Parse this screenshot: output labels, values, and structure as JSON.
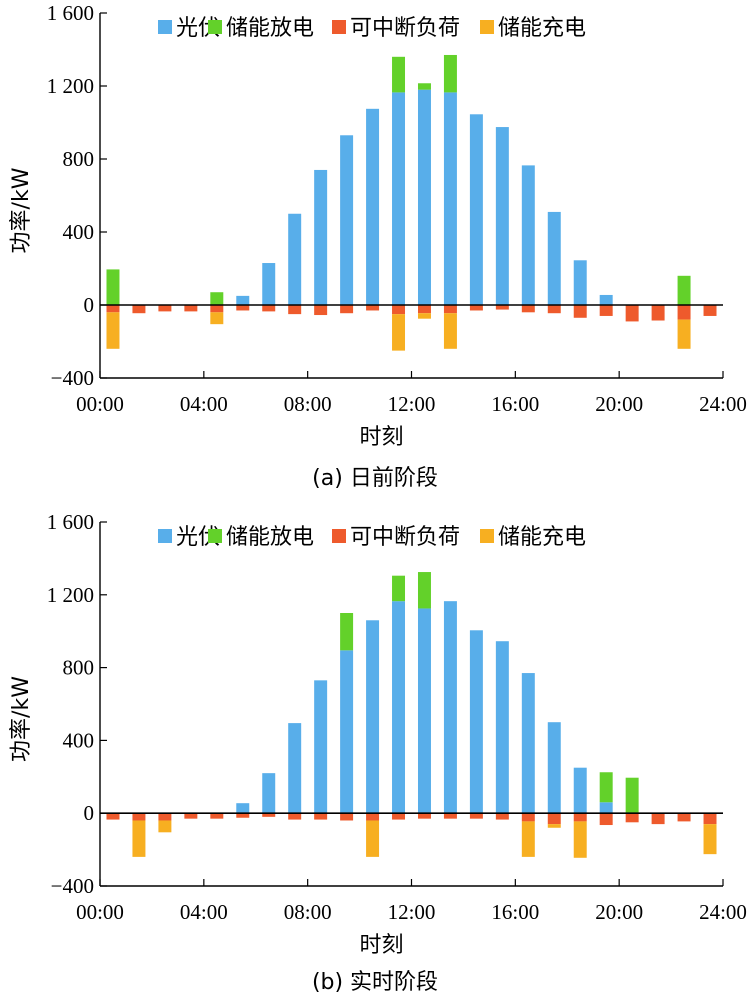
{
  "legend": {
    "pv": "光伏",
    "discharge": "储能放电",
    "curtail": "可中断负荷",
    "charge": "储能充电"
  },
  "colors": {
    "pv": "#58AEEA",
    "discharge": "#63D12A",
    "curtail": "#EE5A2C",
    "charge": "#F7AF21"
  },
  "chart_data": [
    {
      "type": "bar",
      "caption": "(a) 日前阶段",
      "xlabel": "时刻",
      "ylabel": "功率/kW",
      "ylim": [
        -400,
        1600
      ],
      "yticks": [
        "−400",
        "0",
        "400",
        "800",
        "1 200",
        "1 600"
      ],
      "ytick_values": [
        -400,
        0,
        400,
        800,
        1200,
        1600
      ],
      "xticks": [
        "00:00",
        "04:00",
        "08:00",
        "12:00",
        "16:00",
        "20:00",
        "24:00"
      ],
      "xlim": [
        0,
        24
      ],
      "legend_position": "top",
      "categories": [
        "00:00",
        "01:00",
        "02:00",
        "03:00",
        "04:00",
        "05:00",
        "06:00",
        "07:00",
        "08:00",
        "09:00",
        "10:00",
        "11:00",
        "12:00",
        "13:00",
        "14:00",
        "15:00",
        "16:00",
        "17:00",
        "18:00",
        "19:00",
        "20:00",
        "21:00",
        "22:00",
        "23:00"
      ],
      "series": [
        {
          "name": "光伏",
          "key": "pv",
          "values": [
            0,
            0,
            0,
            0,
            0,
            50,
            230,
            500,
            740,
            930,
            1075,
            1165,
            1180,
            1165,
            1045,
            975,
            765,
            510,
            245,
            55,
            0,
            0,
            0,
            0
          ]
        },
        {
          "name": "储能放电",
          "key": "discharge",
          "values": [
            195,
            0,
            0,
            0,
            70,
            0,
            0,
            0,
            0,
            0,
            0,
            195,
            35,
            205,
            0,
            0,
            0,
            0,
            0,
            0,
            0,
            0,
            160,
            0
          ]
        },
        {
          "name": "可中断负荷",
          "key": "curtail",
          "values": [
            -40,
            -45,
            -35,
            -35,
            -40,
            -30,
            -35,
            -50,
            -55,
            -45,
            -30,
            -50,
            -45,
            -45,
            -30,
            -25,
            -40,
            -45,
            -70,
            -60,
            -90,
            -85,
            -80,
            -60
          ]
        },
        {
          "name": "储能充电",
          "key": "charge",
          "values": [
            -200,
            0,
            0,
            0,
            -65,
            0,
            0,
            0,
            0,
            0,
            0,
            -200,
            -30,
            -195,
            0,
            0,
            0,
            0,
            0,
            0,
            0,
            0,
            -160,
            0
          ]
        }
      ]
    },
    {
      "type": "bar",
      "caption": "(b) 实时阶段",
      "xlabel": "时刻",
      "ylabel": "功率/kW",
      "ylim": [
        -400,
        1600
      ],
      "yticks": [
        "−400",
        "0",
        "400",
        "800",
        "1 200",
        "1 600"
      ],
      "ytick_values": [
        -400,
        0,
        400,
        800,
        1200,
        1600
      ],
      "xticks": [
        "00:00",
        "04:00",
        "08:00",
        "12:00",
        "16:00",
        "20:00",
        "24:00"
      ],
      "xlim": [
        0,
        24
      ],
      "legend_position": "top",
      "categories": [
        "00:00",
        "01:00",
        "02:00",
        "03:00",
        "04:00",
        "05:00",
        "06:00",
        "07:00",
        "08:00",
        "09:00",
        "10:00",
        "11:00",
        "12:00",
        "13:00",
        "14:00",
        "15:00",
        "16:00",
        "17:00",
        "18:00",
        "19:00",
        "20:00",
        "21:00",
        "22:00",
        "23:00"
      ],
      "series": [
        {
          "name": "光伏",
          "key": "pv",
          "values": [
            0,
            0,
            0,
            0,
            0,
            55,
            220,
            495,
            730,
            895,
            1060,
            1165,
            1125,
            1165,
            1005,
            945,
            770,
            500,
            250,
            60,
            0,
            0,
            0,
            0
          ]
        },
        {
          "name": "储能放电",
          "key": "discharge",
          "values": [
            0,
            0,
            0,
            0,
            0,
            0,
            0,
            0,
            0,
            205,
            0,
            140,
            200,
            0,
            0,
            0,
            0,
            0,
            0,
            165,
            195,
            0,
            0,
            0
          ]
        },
        {
          "name": "可中断负荷",
          "key": "curtail",
          "values": [
            -35,
            -40,
            -40,
            -30,
            -30,
            -25,
            -20,
            -35,
            -35,
            -40,
            -40,
            -35,
            -30,
            -30,
            -30,
            -35,
            -45,
            -60,
            -45,
            -65,
            -50,
            -60,
            -45,
            -60
          ]
        },
        {
          "name": "储能充电",
          "key": "charge",
          "values": [
            0,
            -200,
            -65,
            0,
            0,
            0,
            0,
            0,
            0,
            0,
            -200,
            0,
            0,
            0,
            0,
            0,
            -195,
            -20,
            -200,
            0,
            0,
            0,
            0,
            -165
          ]
        }
      ]
    }
  ]
}
